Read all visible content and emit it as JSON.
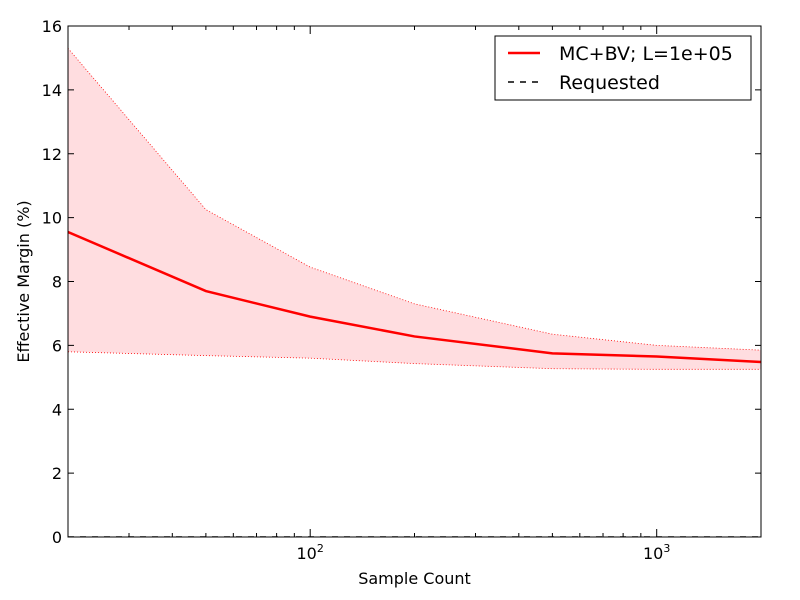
{
  "chart_data": {
    "type": "line",
    "xlabel": "Sample Count",
    "ylabel": "Effective Margin (%)",
    "xscale": "log",
    "xlim": [
      20,
      2000
    ],
    "ylim": [
      0,
      16
    ],
    "grid": false,
    "legend_position": "top-right",
    "x": [
      20,
      50,
      100,
      200,
      500,
      1000,
      2000
    ],
    "series": [
      {
        "name": "MC+BV; L=1e+05",
        "style": "solid",
        "color": "#ff0000",
        "values": [
          9.55,
          7.7,
          6.9,
          6.28,
          5.75,
          5.65,
          5.48
        ],
        "band_upper": [
          15.3,
          10.25,
          8.45,
          7.3,
          6.35,
          6.0,
          5.85
        ],
        "band_lower": [
          5.8,
          5.68,
          5.6,
          5.43,
          5.27,
          5.25,
          5.25
        ],
        "band_color": "#ffdde0"
      },
      {
        "name": "Requested",
        "style": "dashed",
        "color": "#000000",
        "values": [
          0,
          0,
          0,
          0,
          0,
          0,
          0
        ]
      }
    ],
    "yticks": [
      0,
      2,
      4,
      6,
      8,
      10,
      12,
      14,
      16
    ],
    "xticks_major": [
      {
        "value": 100,
        "base": "10",
        "exp": "2"
      },
      {
        "value": 1000,
        "base": "10",
        "exp": "3"
      }
    ]
  }
}
